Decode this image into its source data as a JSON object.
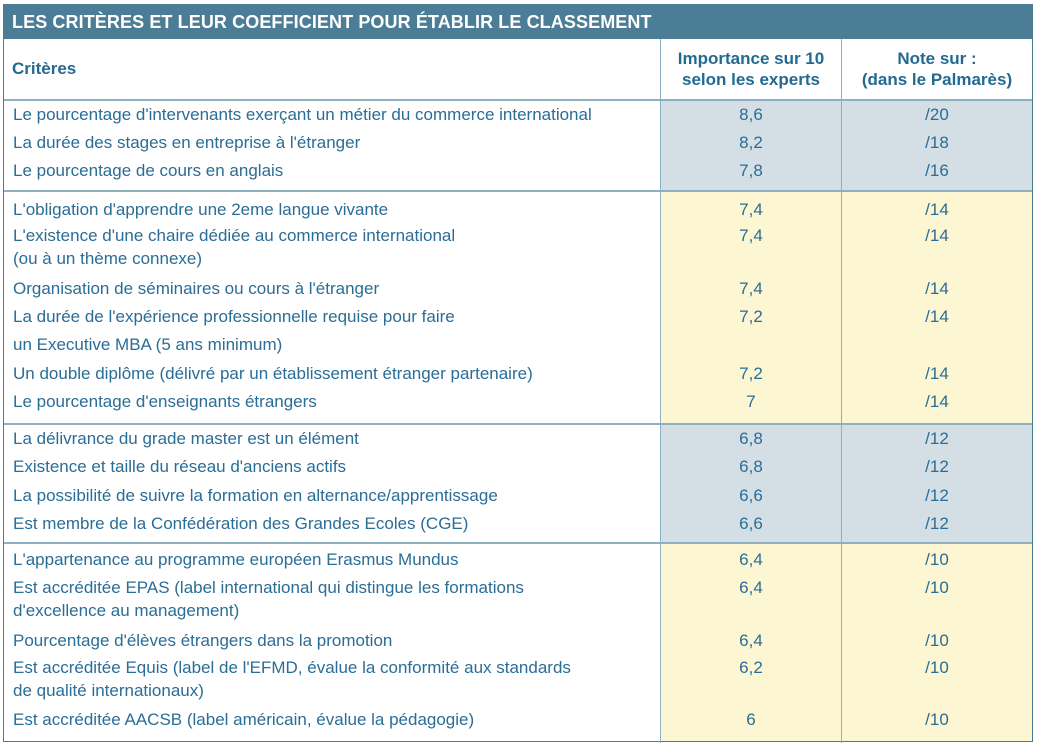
{
  "title": "LES CRITÈRES ET LEUR COEFFICIENT POUR ÉTABLIR LE CLASSEMENT",
  "headers": {
    "criteres": "Critères",
    "importance_1": "Importance sur 10",
    "importance_2": "selon les experts",
    "note_1": "Note sur :",
    "note_2": "(dans le Palmarès)"
  },
  "rows": [
    {
      "crit": "Le pourcentage d'intervenants exerçant un métier du commerce international",
      "imp": "8,6",
      "note": "/20"
    },
    {
      "crit": "La durée des stages en entreprise à l'étranger",
      "imp": "8,2",
      "note": "/18"
    },
    {
      "crit": "Le pourcentage de cours en anglais",
      "imp": "7,8",
      "note": "/16"
    },
    {
      "crit": "L'obligation d'apprendre une 2eme langue vivante",
      "imp": "7,4",
      "note": "/14"
    },
    {
      "crit": "L'existence d'une chaire dédiée au commerce international",
      "crit2": "(ou à un thème connexe)",
      "imp": "7,4",
      "note": "/14"
    },
    {
      "crit": "Organisation de séminaires ou cours à l'étranger",
      "imp": "7,4",
      "note": "/14"
    },
    {
      "crit": "La durée de l'expérience professionnelle requise pour faire",
      "crit2": "un Executive MBA (5 ans minimum)",
      "imp": "7,2",
      "note": "/14"
    },
    {
      "crit": "Un double diplôme (délivré par un établissement étranger partenaire)",
      "imp": "7,2",
      "note": "/14"
    },
    {
      "crit": "Le pourcentage d'enseignants étrangers",
      "imp": "7",
      "note": "/14"
    },
    {
      "crit": "La délivrance du grade master est un élément",
      "imp": "6,8",
      "note": "/12"
    },
    {
      "crit": "Existence et  taille du réseau d'anciens actifs",
      "imp": "6,8",
      "note": "/12"
    },
    {
      "crit": "La possibilité de suivre la formation en alternance/apprentissage",
      "imp": "6,6",
      "note": "/12"
    },
    {
      "crit": "Est membre de la Confédération des Grandes Ecoles (CGE)",
      "imp": "6,6",
      "note": "/12"
    },
    {
      "crit": "L'appartenance au programme européen Erasmus Mundus",
      "imp": "6,4",
      "note": "/10"
    },
    {
      "crit": "Est accréditée EPAS (label international qui distingue les formations",
      "crit2": "d'excellence au management)",
      "imp": "6,4",
      "note": "/10"
    },
    {
      "crit": "Pourcentage d'élèves étrangers dans la promotion",
      "imp": "6,4",
      "note": "/10"
    },
    {
      "crit": "Est accréditée Equis (label de l'EFMD, évalue la conformité aux standards",
      "crit2": "de qualité internationaux)",
      "imp": "6,2",
      "note": "/10"
    },
    {
      "crit": "Est accréditée AACSB (label américain,  évalue la pédagogie)",
      "imp": "6",
      "note": "/10"
    }
  ],
  "colors": {
    "title_bg": "#4b7e96",
    "text": "#2a6d96",
    "group_blue": "#d3dee5",
    "group_yellow": "#fdf6d2"
  }
}
